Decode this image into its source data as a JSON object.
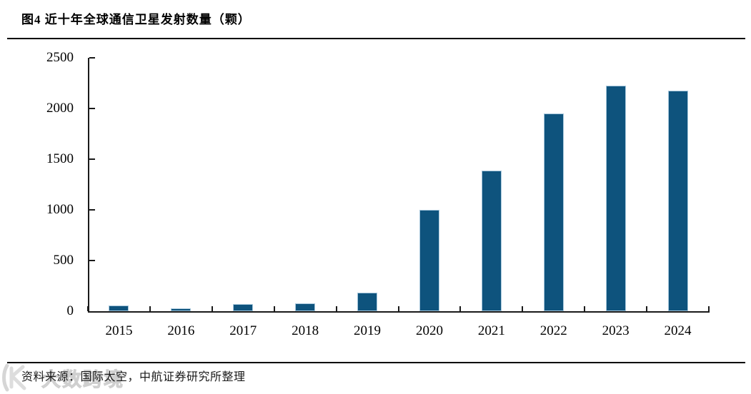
{
  "page": {
    "title": "图4 近十年全球通信卫星发射数量（颗）",
    "source": "资料来源：国际太空，中航证券研究所整理",
    "watermark": "大数跨境"
  },
  "chart_data": {
    "type": "bar",
    "title": "图4 近十年全球通信卫星发射数量（颗）",
    "categories": [
      "2015",
      "2016",
      "2017",
      "2018",
      "2019",
      "2020",
      "2021",
      "2022",
      "2023",
      "2024"
    ],
    "values": [
      55,
      30,
      70,
      75,
      180,
      1000,
      1390,
      1950,
      2225,
      2175
    ],
    "xlabel": "",
    "ylabel": "",
    "ylim": [
      0,
      2500
    ],
    "yticks": [
      0,
      500,
      1000,
      1500,
      2000,
      2500
    ],
    "grid": false,
    "legend": "none",
    "bar_color": "#0E537D",
    "bar_edge_color": "#A7C7DC",
    "axis_color": "#1a1a1a",
    "tick_style": "inside"
  }
}
